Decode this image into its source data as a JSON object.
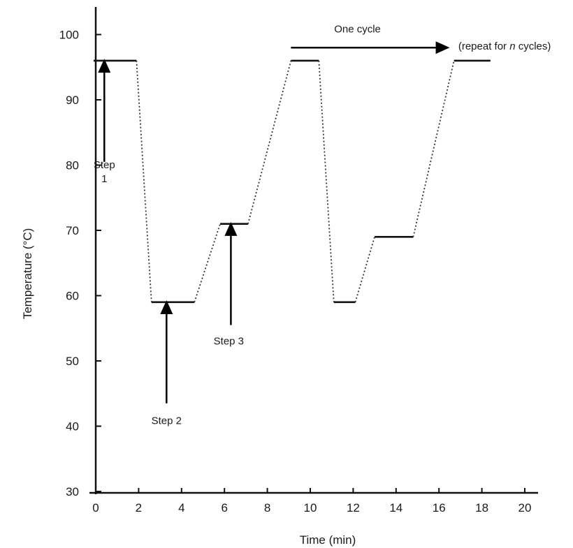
{
  "chart_data": {
    "type": "line",
    "xlabel": "Time (min)",
    "ylabel": "Temperature (°C)",
    "xlim": [
      -0.2,
      20
    ],
    "ylim": [
      30,
      104
    ],
    "x_ticks": [
      0,
      2,
      4,
      6,
      8,
      10,
      12,
      14,
      16,
      18,
      20
    ],
    "y_ticks": [
      30,
      40,
      50,
      60,
      70,
      80,
      90,
      100
    ],
    "grid": false,
    "segments": [
      {
        "style": "hold",
        "x": [
          -0.1,
          1.9
        ],
        "y": [
          96,
          96
        ]
      },
      {
        "style": "ramp",
        "x": [
          1.9,
          2.6
        ],
        "y": [
          96,
          59
        ]
      },
      {
        "style": "hold",
        "x": [
          2.6,
          4.6
        ],
        "y": [
          59,
          59
        ]
      },
      {
        "style": "ramp",
        "x": [
          4.6,
          5.8
        ],
        "y": [
          59,
          71
        ]
      },
      {
        "style": "hold",
        "x": [
          5.8,
          7.1
        ],
        "y": [
          71,
          71
        ]
      },
      {
        "style": "ramp",
        "x": [
          7.1,
          9.1
        ],
        "y": [
          71,
          96
        ]
      },
      {
        "style": "hold",
        "x": [
          9.1,
          10.4
        ],
        "y": [
          96,
          96
        ]
      },
      {
        "style": "ramp",
        "x": [
          10.4,
          11.1
        ],
        "y": [
          96,
          59
        ]
      },
      {
        "style": "hold",
        "x": [
          11.1,
          12.1
        ],
        "y": [
          59,
          59
        ]
      },
      {
        "style": "ramp",
        "x": [
          12.1,
          13.0
        ],
        "y": [
          59,
          69
        ]
      },
      {
        "style": "hold",
        "x": [
          13.0,
          14.8
        ],
        "y": [
          69,
          69
        ]
      },
      {
        "style": "ramp",
        "x": [
          14.8,
          16.7
        ],
        "y": [
          69,
          96
        ]
      },
      {
        "style": "hold",
        "x": [
          16.7,
          18.4
        ],
        "y": [
          96,
          96
        ]
      }
    ],
    "annotations": [
      {
        "name": "step-1",
        "lines": [
          "Step",
          "1"
        ],
        "x": 0.4,
        "y": 79.5
      },
      {
        "name": "step-2",
        "lines": [
          "Step 2"
        ],
        "x": 3.3,
        "y": 40.3
      },
      {
        "name": "step-3",
        "lines": [
          "Step 3"
        ],
        "x": 6.2,
        "y": 52.5
      },
      {
        "name": "one-cycle",
        "lines": [
          "One cycle"
        ],
        "x": 12.2,
        "y": 100.3
      },
      {
        "name": "repeat-note",
        "lines": [
          "(repeat for ",
          "n",
          " cycles)"
        ],
        "x": 16.9,
        "y": 97.7
      }
    ],
    "arrows": [
      {
        "name": "step-1-arrow",
        "from": [
          0.4,
          80.5
        ],
        "to": [
          0.4,
          96.3
        ]
      },
      {
        "name": "step-2-arrow",
        "from": [
          3.3,
          43.5
        ],
        "to": [
          3.3,
          59.3
        ]
      },
      {
        "name": "step-3-arrow",
        "from": [
          6.3,
          55.5
        ],
        "to": [
          6.3,
          71.3
        ]
      },
      {
        "name": "one-cycle-arrow",
        "from": [
          9.1,
          98.0
        ],
        "to": [
          16.5,
          98.0
        ]
      }
    ]
  }
}
